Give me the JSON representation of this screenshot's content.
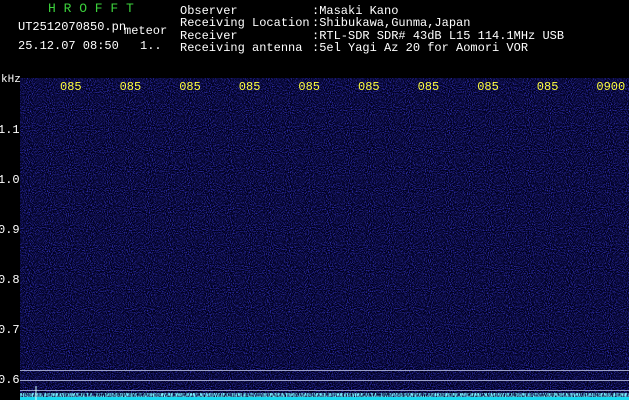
{
  "header": {
    "app": "H R O F F T",
    "file": "UT2512070850.pn",
    "mode": "meteor",
    "datetime": "25.12.07 08:50",
    "counter": "1..",
    "fields": [
      {
        "label": "Observer",
        "value": ":Masaki Kano"
      },
      {
        "label": "Receiving Location",
        "value": ":Shibukawa,Gunma,Japan"
      },
      {
        "label": "Receiver",
        "value": ":RTL-SDR SDR# 43dB L15 114.1MHz USB"
      },
      {
        "label": "Receiving antenna",
        "value": ":5el Yagi Az 20 for Aomori VOR"
      }
    ]
  },
  "spectrogram": {
    "unit": "kHz",
    "time_labels": [
      "085",
      "085",
      "085",
      "085",
      "085",
      "085",
      "085",
      "085",
      "085",
      "0900"
    ],
    "freq_labels": [
      "1.1",
      "1.0",
      "0.9",
      "0.8",
      "0.7",
      "0.6"
    ]
  }
}
